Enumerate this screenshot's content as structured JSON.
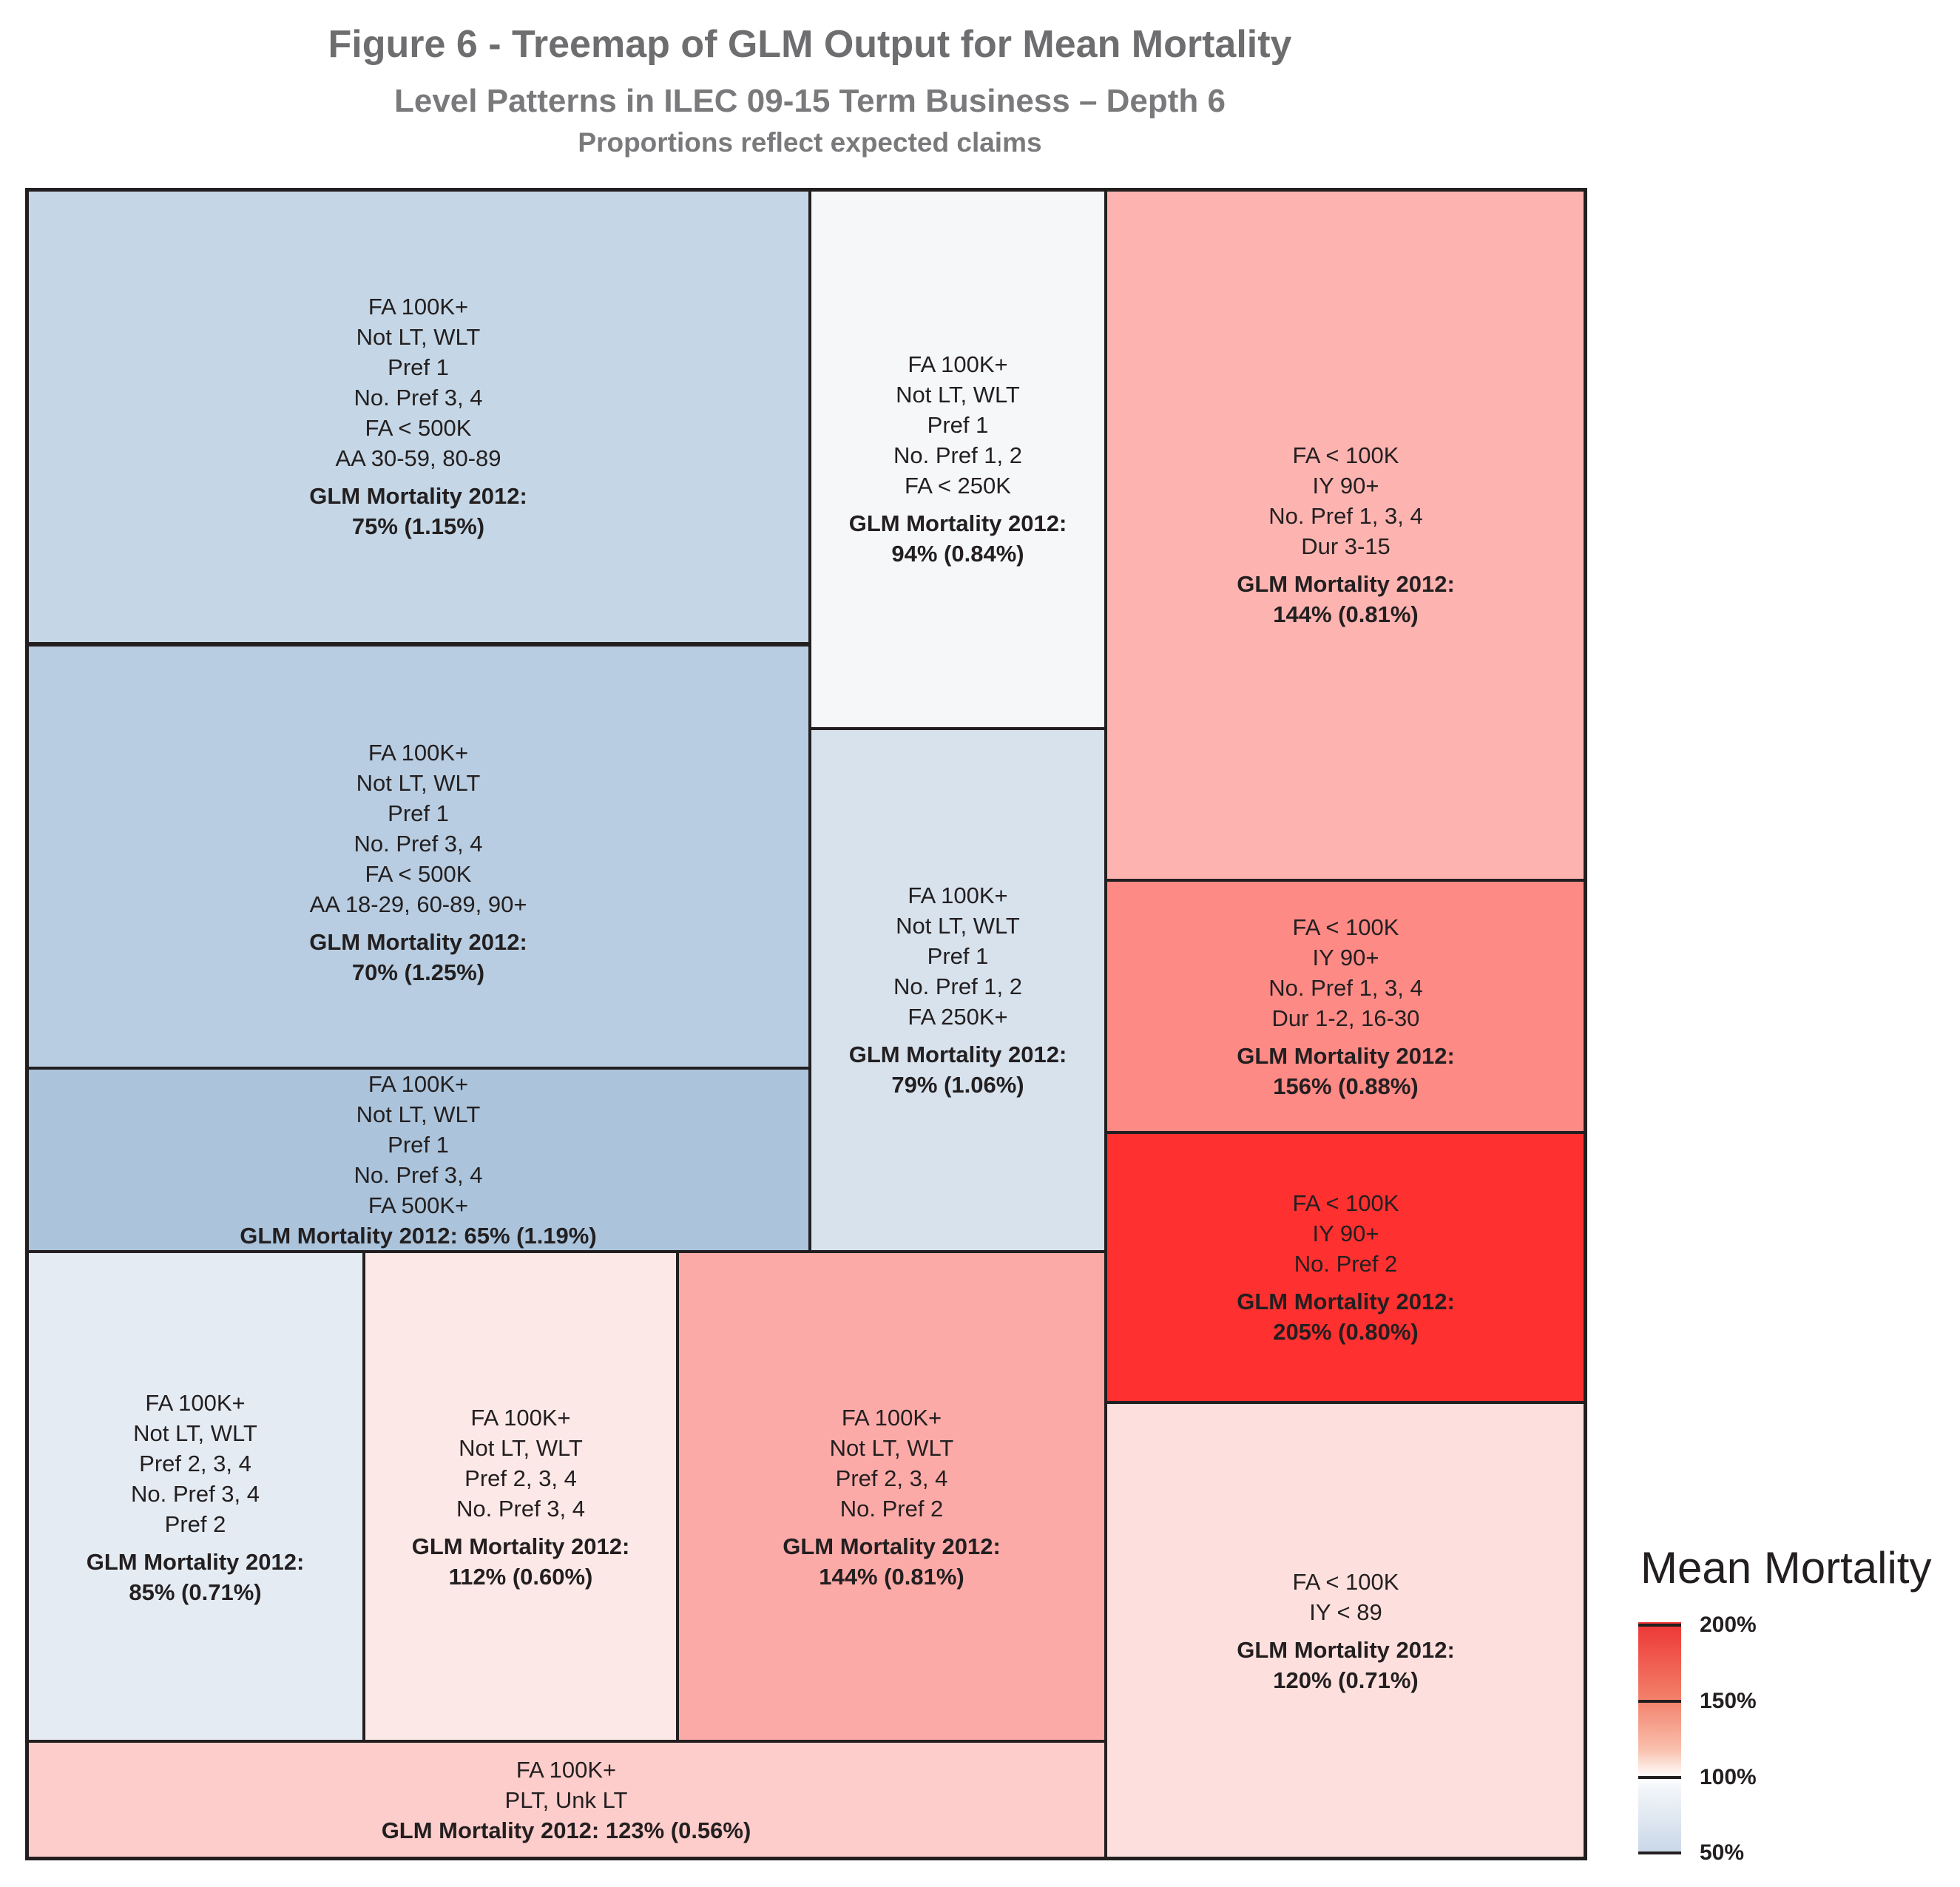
{
  "chart_data": {
    "type": "treemap",
    "title": "Figure 6 - Treemap of GLM Output for Mean Mortality",
    "subtitle": "Level Patterns in ILEC 09-15 Term Business – Depth 6",
    "note": "Proportions reflect expected claims",
    "legend": {
      "title": "Mean Mortality",
      "ticks": [
        "200%",
        "150%",
        "100%",
        "50%"
      ],
      "tick_values": [
        200,
        150,
        100,
        50
      ],
      "placement": "bottom-right"
    },
    "cells": [
      {
        "lines": [
          "FA 100K+",
          "Not LT, WLT",
          "Pref 1",
          "No. Pref 3, 4",
          "FA < 500K",
          "AA 30-59, 80-89"
        ],
        "label": "GLM Mortality 2012:",
        "value": "75% (1.15%)",
        "mortality": 75,
        "color": "#c5d7e6"
      },
      {
        "lines": [
          "FA 100K+",
          "Not LT, WLT",
          "Pref 1",
          "No. Pref 3, 4",
          "FA < 500K",
          "AA 18-29, 60-89, 90+"
        ],
        "label": "GLM Mortality 2012:",
        "value": "70% (1.25%)",
        "mortality": 70,
        "color": "#b8cde1"
      },
      {
        "lines": [
          "FA 100K+",
          "Not LT, WLT",
          "Pref 1",
          "No. Pref 3, 4",
          "FA 500K+"
        ],
        "label": "GLM Mortality 2012: 65% (1.19%)",
        "value": "",
        "mortality": 65,
        "color": "#abc4dc"
      },
      {
        "lines": [
          "FA 100K+",
          "Not LT, WLT",
          "Pref 2, 3, 4",
          "No. Pref 3, 4",
          "Pref 2"
        ],
        "label": "GLM Mortality 2012:",
        "value": "85% (0.71%)",
        "mortality": 85,
        "color": "#e4ebf3"
      },
      {
        "lines": [
          "FA 100K+",
          "Not LT, WLT",
          "Pref 2, 3, 4",
          "No. Pref 3, 4"
        ],
        "label": "GLM Mortality 2012:",
        "value": "112% (0.60%)",
        "mortality": 112,
        "color": "#fde8e8"
      },
      {
        "lines": [
          "FA 100K+",
          "Not LT, WLT",
          "Pref 2, 3, 4",
          "No. Pref 2"
        ],
        "label": "GLM Mortality 2012:",
        "value": "144% (0.81%)",
        "mortality": 144,
        "color": "#fcaaa8"
      },
      {
        "lines": [
          "FA 100K+",
          "PLT, Unk LT"
        ],
        "label": "GLM Mortality 2012: 123% (0.56%)",
        "value": "",
        "mortality": 123,
        "color": "#fdcdcb"
      },
      {
        "lines": [
          "FA 100K+",
          "Not LT, WLT",
          "Pref 1",
          "No. Pref 1, 2",
          "FA < 250K"
        ],
        "label": "GLM Mortality 2012:",
        "value": "94% (0.84%)",
        "mortality": 94,
        "color": "#f6f7f9"
      },
      {
        "lines": [
          "FA 100K+",
          "Not LT, WLT",
          "Pref 1",
          "No. Pref 1, 2",
          "FA 250K+"
        ],
        "label": "GLM Mortality 2012:",
        "value": "79% (1.06%)",
        "mortality": 79,
        "color": "#d7e2ed"
      },
      {
        "lines": [
          "FA < 100K",
          "IY 90+",
          "No. Pref 1, 3, 4",
          "Dur 3-15"
        ],
        "label": "GLM Mortality 2012:",
        "value": "144% (0.81%)",
        "mortality": 144,
        "color": "#fdb4b1"
      },
      {
        "lines": [
          "FA < 100K",
          "IY 90+",
          "No. Pref 1, 3, 4",
          "Dur 1-2, 16-30"
        ],
        "label": "GLM Mortality 2012:",
        "value": "156% (0.88%)",
        "mortality": 156,
        "color": "#fe8a86"
      },
      {
        "lines": [
          "FA < 100K",
          "IY 90+",
          "No. Pref 2"
        ],
        "label": "GLM Mortality 2012:",
        "value": "205% (0.80%)",
        "mortality": 205,
        "color": "#ff3030"
      },
      {
        "lines": [
          "FA < 100K",
          "IY < 89"
        ],
        "label": "GLM Mortality 2012:",
        "value": "120% (0.71%)",
        "mortality": 120,
        "color": "#fde0dd"
      }
    ]
  }
}
